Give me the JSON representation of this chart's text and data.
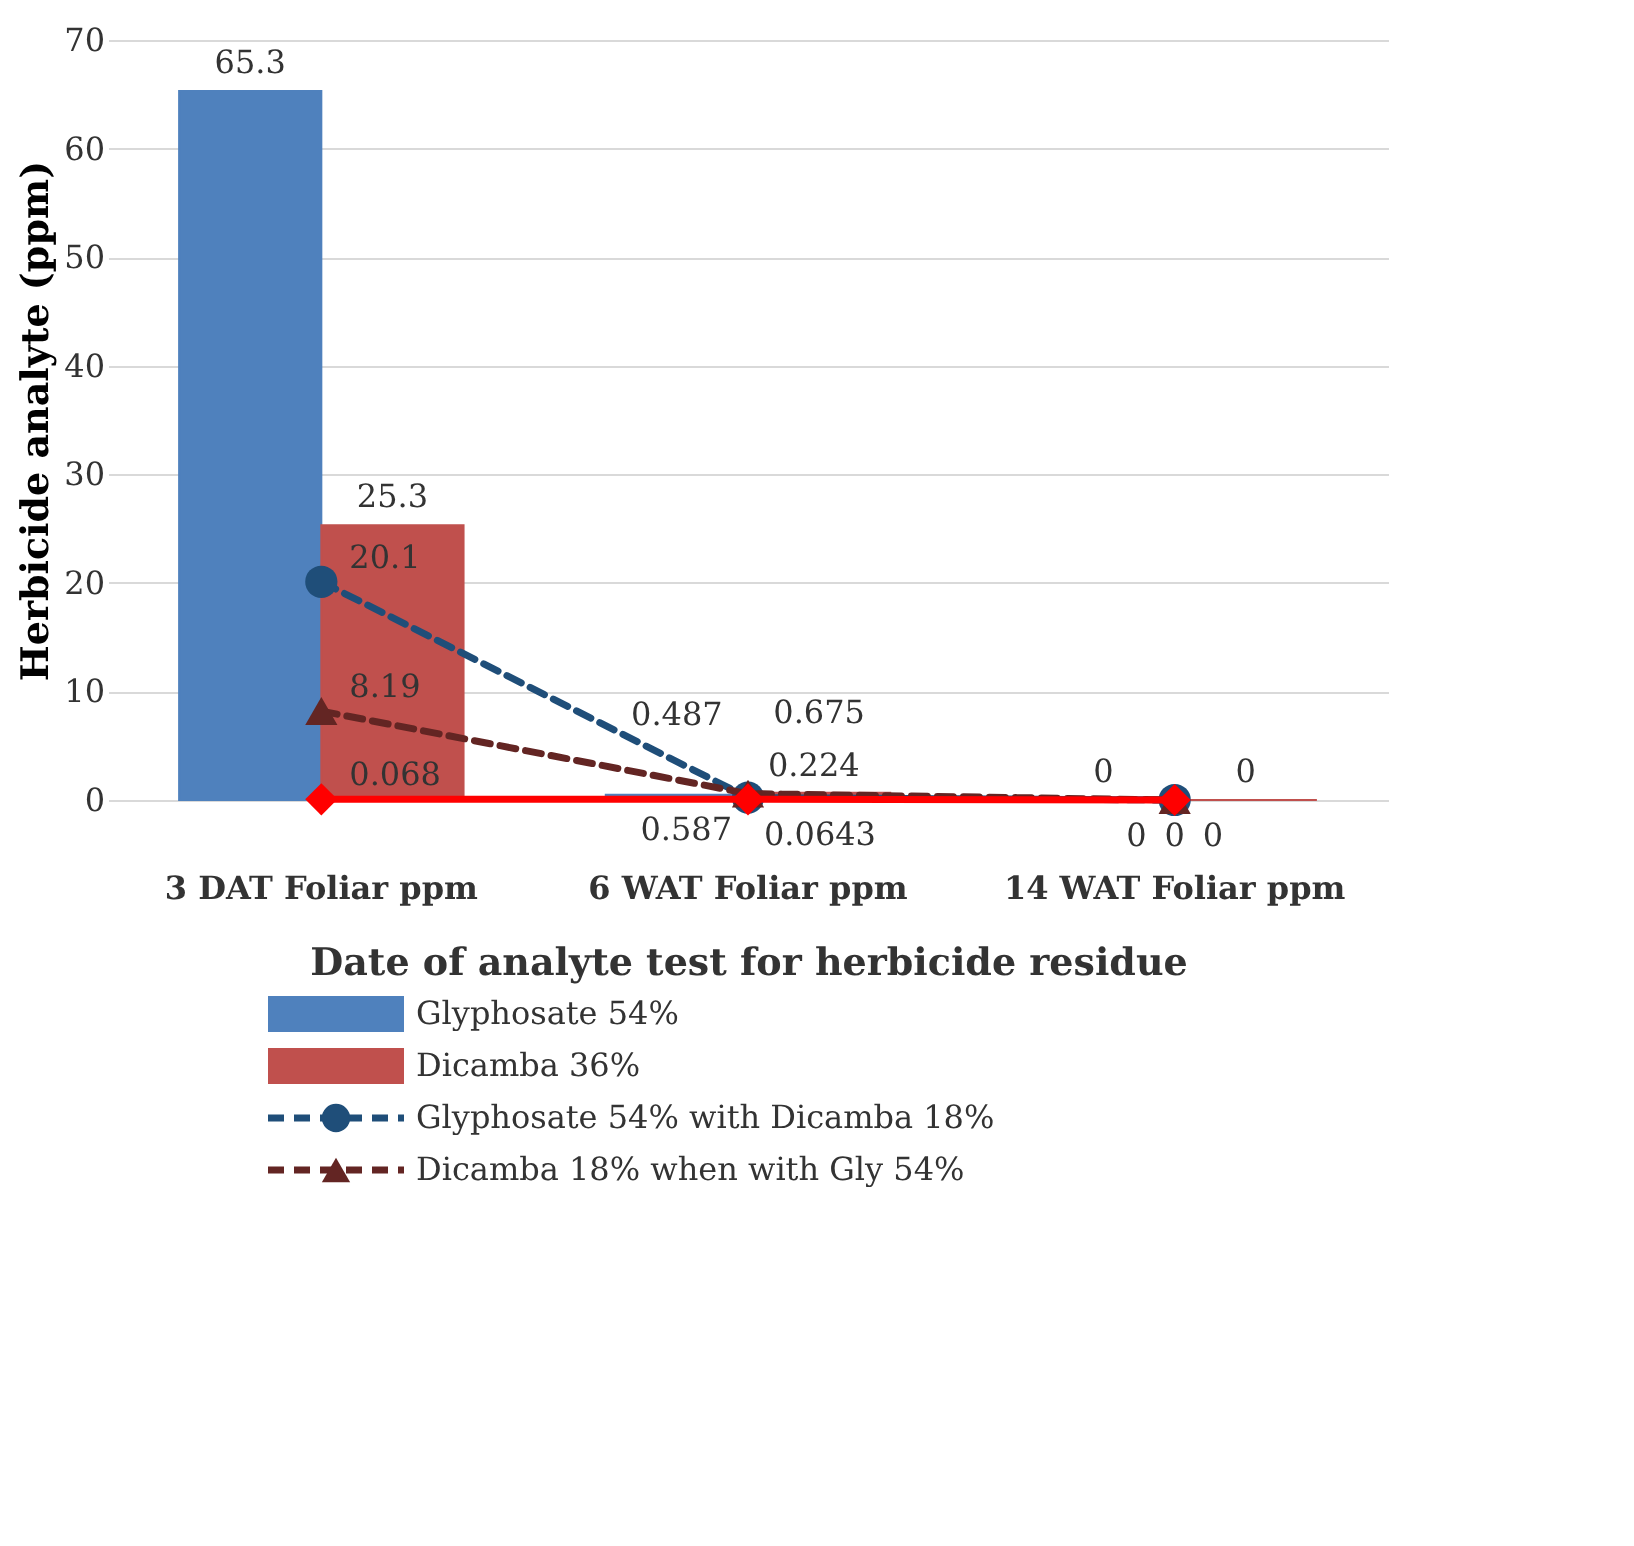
{
  "chart_data": {
    "type": "bar",
    "xlabel": "Date of analyte test for herbicide residue",
    "ylabel": "Herbicide analyte (ppm)",
    "categories": [
      "3 DAT Foliar ppm",
      "6 WAT Foliar ppm",
      "14 WAT Foliar ppm"
    ],
    "series": [
      {
        "name": "Glyphosate 54%",
        "color": "#4f81bd",
        "values": [
          65.3,
          0.487,
          0
        ]
      },
      {
        "name": "Dicamba 36%",
        "color": "#c0504d",
        "values": [
          25.3,
          0.675,
          0
        ]
      },
      {
        "name": "Glyphosate 54% with Dicamba 18%",
        "type": "line",
        "color": "#1f4e79",
        "line_style": "dashed",
        "marker": "circle",
        "values": [
          20.1,
          0.224,
          0
        ]
      },
      {
        "name": "Dicamba 18% when with Gly 54%",
        "type": "line",
        "color": "#632523",
        "line_style": "dashed",
        "marker": "triangle",
        "values": [
          8.19,
          0.587,
          0
        ]
      },
      {
        "type": "line",
        "color": "#ff0000",
        "line_style": "solid",
        "marker": "diamond",
        "values": [
          0.068,
          0.0643,
          0
        ]
      }
    ],
    "ylim": [
      0,
      70
    ],
    "yticks": [
      0,
      10,
      20,
      30,
      40,
      50,
      60,
      70
    ],
    "grid": "y",
    "data_labels": true,
    "legend": "bottom"
  }
}
